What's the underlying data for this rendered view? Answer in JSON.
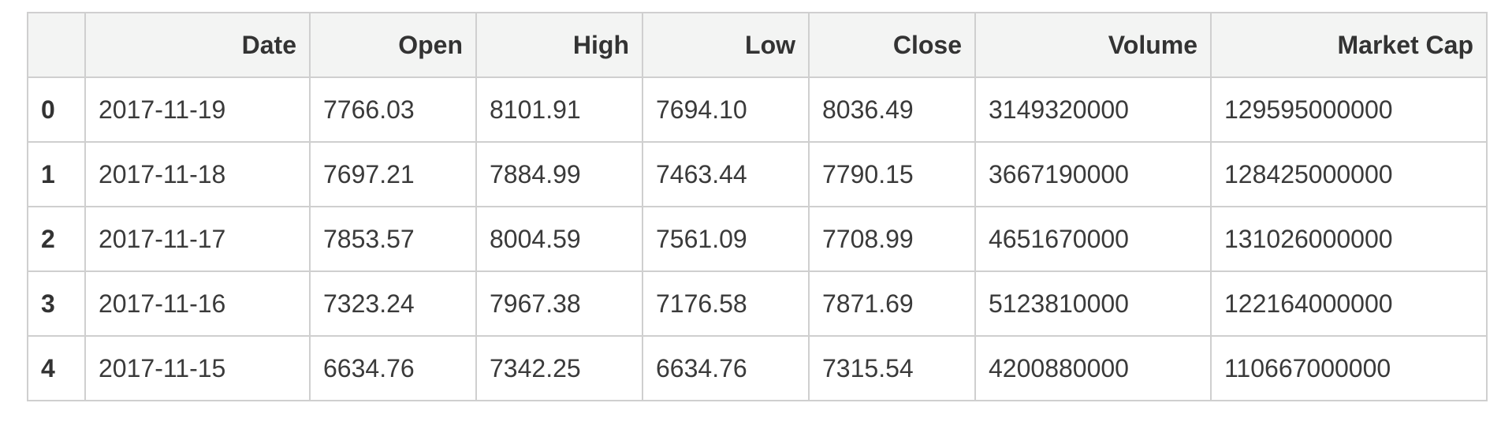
{
  "table": {
    "columns": [
      "",
      "Date",
      "Open",
      "High",
      "Low",
      "Close",
      "Volume",
      "Market Cap"
    ],
    "rows": [
      {
        "index": "0",
        "cells": [
          "2017-11-19",
          "7766.03",
          "8101.91",
          "7694.10",
          "8036.49",
          "3149320000",
          "129595000000"
        ]
      },
      {
        "index": "1",
        "cells": [
          "2017-11-18",
          "7697.21",
          "7884.99",
          "7463.44",
          "7790.15",
          "3667190000",
          "128425000000"
        ]
      },
      {
        "index": "2",
        "cells": [
          "2017-11-17",
          "7853.57",
          "8004.59",
          "7561.09",
          "7708.99",
          "4651670000",
          "131026000000"
        ]
      },
      {
        "index": "3",
        "cells": [
          "2017-11-16",
          "7323.24",
          "7967.38",
          "7176.58",
          "7871.69",
          "5123810000",
          "122164000000"
        ]
      },
      {
        "index": "4",
        "cells": [
          "2017-11-15",
          "6634.76",
          "7342.25",
          "6634.76",
          "7315.54",
          "4200880000",
          "110667000000"
        ]
      }
    ]
  }
}
